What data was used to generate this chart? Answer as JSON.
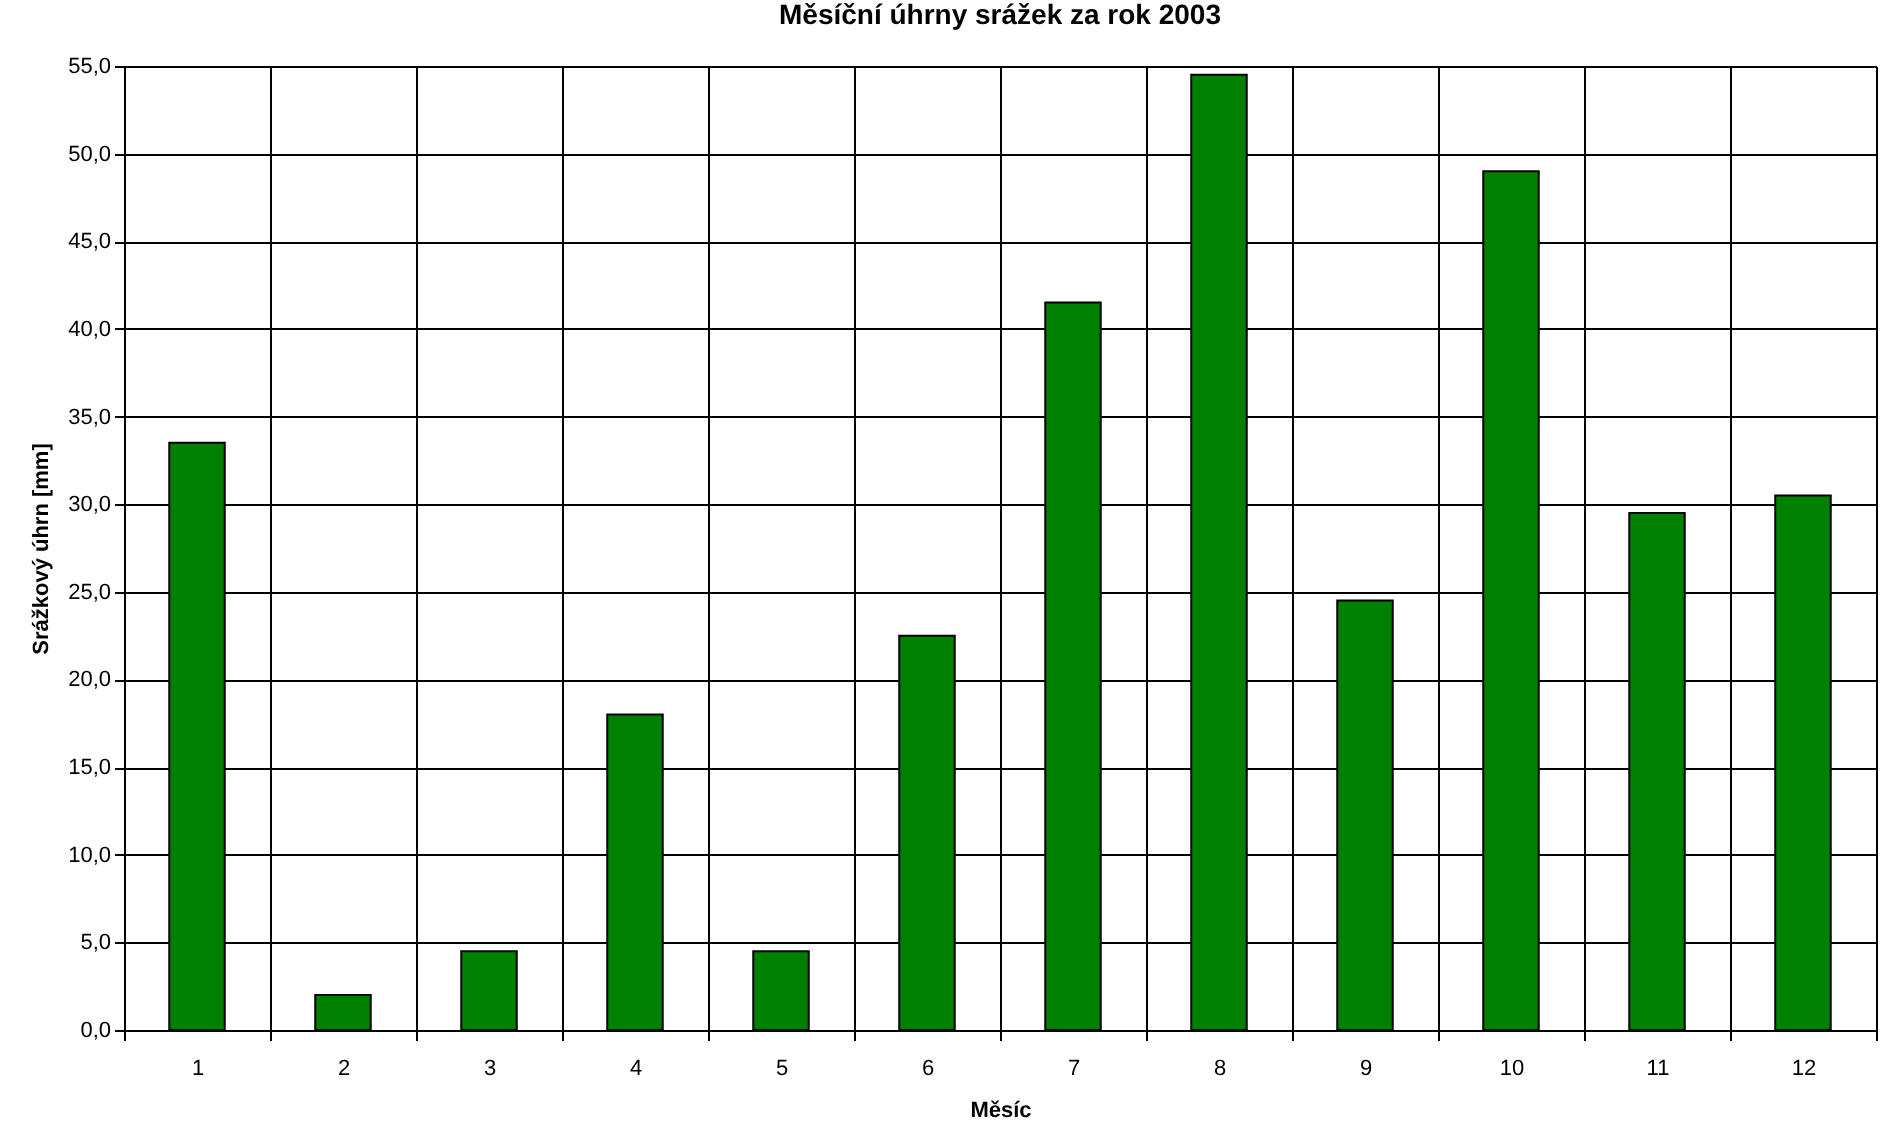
{
  "chart_data": {
    "type": "bar",
    "title": "Měsíční úhrny srážek za rok 2003",
    "xlabel": "Měsíc",
    "ylabel": "Srážkový úhrn [mm]",
    "categories": [
      "1",
      "2",
      "3",
      "4",
      "5",
      "6",
      "7",
      "8",
      "9",
      "10",
      "11",
      "12"
    ],
    "values": [
      33.5,
      2.0,
      4.5,
      18.0,
      4.5,
      22.5,
      41.5,
      54.5,
      24.5,
      49.0,
      29.5,
      30.5
    ],
    "color": "#008000",
    "ylim": [
      0,
      55
    ],
    "yticks": [
      {
        "value": 0,
        "label": "0,0"
      },
      {
        "value": 5,
        "label": "5,0"
      },
      {
        "value": 10,
        "label": "10,0"
      },
      {
        "value": 15,
        "label": "15,0"
      },
      {
        "value": 20,
        "label": "20,0"
      },
      {
        "value": 25,
        "label": "25,0"
      },
      {
        "value": 30,
        "label": "30,0"
      },
      {
        "value": 35,
        "label": "35,0"
      },
      {
        "value": 40,
        "label": "40,0"
      },
      {
        "value": 45,
        "label": "45,0"
      },
      {
        "value": 50,
        "label": "50,0"
      },
      {
        "value": 55,
        "label": "55,0"
      }
    ],
    "grid": true
  }
}
